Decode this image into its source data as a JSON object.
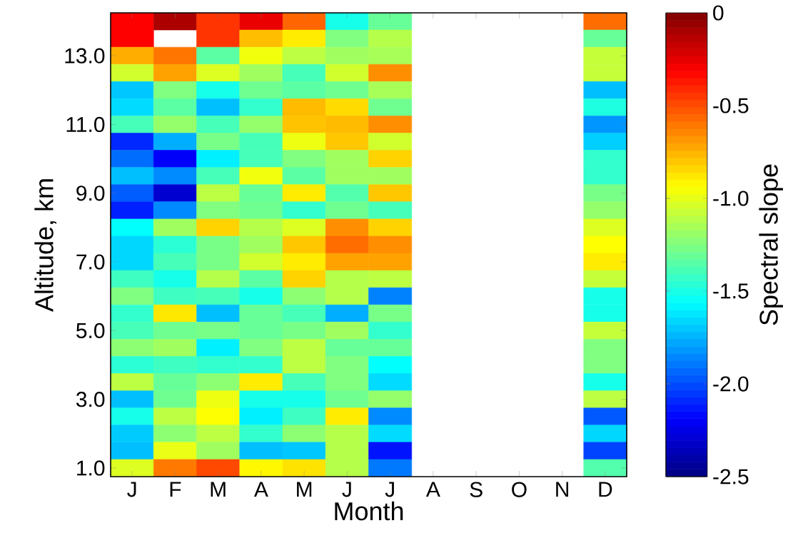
{
  "chart_data": {
    "type": "heatmap",
    "xlabel": "Month",
    "ylabel": "Altitude, km",
    "clabel": "Spectral slope",
    "categories": [
      "J",
      "F",
      "M",
      "A",
      "M",
      "J",
      "J",
      "A",
      "S",
      "O",
      "N",
      "D"
    ],
    "y_categories": [
      null,
      null,
      "13.0",
      null,
      null,
      null,
      "11.0",
      null,
      null,
      null,
      "9.0",
      null,
      null,
      null,
      "7.0",
      null,
      null,
      null,
      "5.0",
      null,
      null,
      null,
      "3.0",
      null,
      null,
      null,
      "1.0"
    ],
    "cells": [
      [
        -0.31,
        -0.11,
        -0.44,
        -0.26,
        -0.56,
        -1.51,
        -1.31,
        null,
        null,
        null,
        null,
        -0.58
      ],
      [
        -0.31,
        null,
        -0.44,
        -0.78,
        -0.89,
        -1.25,
        -1.12,
        null,
        null,
        null,
        null,
        -1.31
      ],
      [
        -0.74,
        -0.6,
        -1.34,
        -0.97,
        -1.1,
        -1.17,
        -1.15,
        null,
        null,
        null,
        null,
        -1.08
      ],
      [
        -1.05,
        -0.71,
        -1.02,
        -1.17,
        -1.39,
        -1.05,
        -0.66,
        null,
        null,
        null,
        null,
        -1.08
      ],
      [
        -1.7,
        -1.25,
        -1.51,
        -1.29,
        -1.34,
        -1.29,
        -1.15,
        null,
        null,
        null,
        null,
        -1.72
      ],
      [
        -1.65,
        -1.34,
        -1.72,
        -1.44,
        -0.77,
        -0.85,
        -1.29,
        null,
        null,
        null,
        null,
        -1.49
      ],
      [
        -1.39,
        -1.2,
        -1.39,
        -1.2,
        -0.79,
        -0.77,
        -0.66,
        null,
        null,
        null,
        null,
        -1.82
      ],
      [
        -2.09,
        -1.76,
        -1.27,
        -1.39,
        -0.98,
        -0.8,
        -1.05,
        null,
        null,
        null,
        null,
        -1.68
      ],
      [
        -1.92,
        -2.2,
        -1.6,
        -1.39,
        -1.25,
        -1.17,
        -0.83,
        null,
        null,
        null,
        null,
        -1.44
      ],
      [
        -1.72,
        -1.85,
        -1.39,
        -0.97,
        -1.34,
        -1.17,
        -1.17,
        null,
        null,
        null,
        null,
        -1.44
      ],
      [
        -1.96,
        -2.3,
        -1.1,
        -1.31,
        -0.89,
        -1.36,
        -0.8,
        null,
        null,
        null,
        null,
        -1.27
      ],
      [
        -2.11,
        -1.85,
        -1.25,
        -1.29,
        -1.44,
        -1.29,
        -1.39,
        null,
        null,
        null,
        null,
        -1.2
      ],
      [
        -1.56,
        -1.17,
        -0.83,
        -1.12,
        -1.02,
        -0.66,
        -0.83,
        null,
        null,
        null,
        null,
        -1.02
      ],
      [
        -1.66,
        -1.46,
        -1.27,
        -1.17,
        -0.8,
        -0.58,
        -0.66,
        null,
        null,
        null,
        null,
        -0.94
      ],
      [
        -1.66,
        -1.39,
        -1.27,
        -1.05,
        -0.89,
        -0.71,
        -0.71,
        null,
        null,
        null,
        null,
        -0.89
      ],
      [
        -1.41,
        -1.51,
        -1.12,
        -1.34,
        -0.83,
        -1.12,
        -1.1,
        null,
        null,
        null,
        null,
        -1.08
      ],
      [
        -1.25,
        -1.41,
        -1.39,
        -1.51,
        -1.22,
        -1.12,
        -1.87,
        null,
        null,
        null,
        null,
        -1.51
      ],
      [
        -1.44,
        -0.88,
        -1.72,
        -1.31,
        -1.39,
        -1.76,
        -1.27,
        null,
        null,
        null,
        null,
        -1.51
      ],
      [
        -1.39,
        -1.29,
        -1.27,
        -1.31,
        -1.27,
        -1.17,
        -1.44,
        null,
        null,
        null,
        null,
        -1.08
      ],
      [
        -1.22,
        -1.17,
        -1.6,
        -1.25,
        -1.1,
        -1.31,
        -1.31,
        null,
        null,
        null,
        null,
        -1.25
      ],
      [
        -1.46,
        -1.41,
        -1.44,
        -1.44,
        -1.1,
        -1.25,
        -1.56,
        null,
        null,
        null,
        null,
        -1.25
      ],
      [
        -1.1,
        -1.31,
        -1.22,
        -0.89,
        -1.39,
        -1.25,
        -1.65,
        null,
        null,
        null,
        null,
        -1.51
      ],
      [
        -1.72,
        -1.29,
        -0.98,
        -1.51,
        -1.51,
        -1.29,
        -1.2,
        null,
        null,
        null,
        null,
        -1.1
      ],
      [
        -1.51,
        -1.1,
        -0.94,
        -1.6,
        -1.41,
        -0.89,
        -1.85,
        null,
        null,
        null,
        null,
        -1.97
      ],
      [
        -1.69,
        -1.22,
        -1.1,
        -1.44,
        -1.22,
        -1.12,
        -1.65,
        null,
        null,
        null,
        null,
        -1.66
      ],
      [
        -1.72,
        -0.99,
        -1.17,
        -1.72,
        -1.7,
        -1.12,
        -2.14,
        null,
        null,
        null,
        null,
        -2.02
      ],
      [
        -1.02,
        -0.61,
        -0.49,
        -0.92,
        -0.87,
        -1.12,
        -1.89,
        null,
        null,
        null,
        null,
        -1.36
      ]
    ],
    "clim": [
      -2.5,
      0
    ],
    "cticks": [
      {
        "value": -2.5,
        "label": "-2.5"
      },
      {
        "value": -2.0,
        "label": "-2.0"
      },
      {
        "value": -1.5,
        "label": "-1.5"
      },
      {
        "value": -1.0,
        "label": "-1.0"
      },
      {
        "value": -0.5,
        "label": "-0.5"
      },
      0
    ]
  }
}
